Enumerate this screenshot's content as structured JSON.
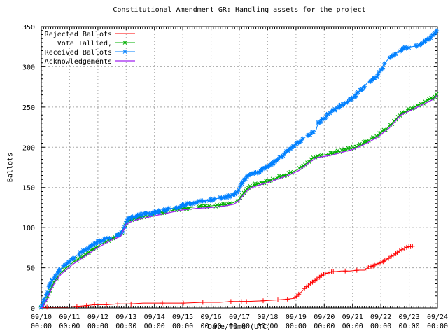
{
  "window": {
    "background": "#ffffff",
    "text_color": "#000000"
  },
  "chart_data": {
    "type": "line",
    "title": "Constitutional Amendment GR: Handling assets for the project",
    "xlabel": "Date/Time (UTC)",
    "ylabel": "Ballots",
    "grid": {
      "enabled": true,
      "color": "#a8a8a8"
    },
    "legend_position": "top-left",
    "x_axis": {
      "tick_dates": [
        "09/10",
        "09/11",
        "09/12",
        "09/13",
        "09/14",
        "09/15",
        "09/16",
        "09/17",
        "09/18",
        "09/19",
        "09/20",
        "09/21",
        "09/22",
        "09/23",
        "09/24"
      ],
      "tick_time": "00:00",
      "span_days": 14,
      "minor_ticks_per_day": 12
    },
    "y_axis": {
      "min": 0,
      "max": 350,
      "tick_step": 50,
      "minor_step": 5
    },
    "series": [
      {
        "name": "Rejected Ballots",
        "color": "#ff0000",
        "marker": "plus",
        "line_width": 1,
        "x_days": [
          0,
          0.2,
          0.9,
          1.26,
          1.6,
          1.88,
          2.3,
          2.7,
          3.17,
          3.6,
          4.28,
          5.02,
          5.71,
          6.3,
          6.7,
          7.07,
          7.25,
          7.84,
          8.36,
          8.7,
          8.95,
          9.1,
          9.25,
          9.4,
          9.55,
          9.7,
          9.85,
          10.0,
          10.15,
          10.35,
          10.6,
          10.9,
          11.2,
          11.45,
          11.55,
          11.75,
          11.95,
          12.15,
          12.35,
          12.55,
          12.7,
          12.85,
          13.0,
          13.15
        ],
        "y": [
          0,
          1,
          1,
          2,
          3,
          4,
          4,
          5,
          5,
          6,
          6,
          6,
          7,
          7,
          8,
          8,
          8,
          9,
          10,
          11,
          12,
          17,
          22,
          27,
          31,
          35,
          39,
          42,
          44,
          45,
          46,
          46,
          47,
          47,
          51,
          53,
          56,
          59,
          64,
          68,
          72,
          75,
          76,
          77
        ],
        "marker_xs": [
          0.2,
          1.26,
          1.6,
          1.88,
          2.3,
          2.7,
          3.17,
          4.28,
          5.02,
          5.71,
          6.7,
          7.07,
          7.25,
          7.84,
          8.36,
          8.7,
          10.74,
          11.15
        ],
        "dense_marker_ranges": [
          [
            8.95,
            10.4
          ],
          [
            11.5,
            13.15
          ]
        ],
        "marker_step": 0.07,
        "jitter": 0.6,
        "seed": 7
      },
      {
        "name": "Vote Tallied,",
        "color": "#00b000",
        "marker": "cross",
        "line_width": 1,
        "x_days": [
          0,
          0.05,
          0.2,
          0.35,
          0.5,
          0.7,
          0.9,
          1.1,
          1.4,
          1.7,
          1.95,
          2.2,
          2.5,
          2.8,
          3.0,
          3.2,
          3.5,
          3.9,
          4.3,
          4.7,
          5.0,
          5.5,
          6.0,
          6.5,
          6.8,
          7.0,
          7.15,
          7.3,
          7.45,
          7.7,
          8.0,
          8.4,
          8.8,
          9.1,
          9.47,
          9.72,
          10.24,
          10.65,
          11.08,
          11.5,
          11.9,
          12.3,
          12.71,
          13.0,
          13.3,
          13.6,
          13.88,
          14.0
        ],
        "y": [
          0,
          2,
          12,
          25,
          35,
          44,
          50,
          56,
          63,
          70,
          76,
          81,
          87,
          91,
          106,
          110,
          113,
          116,
          119,
          122,
          124,
          126,
          127,
          129,
          131,
          136,
          143,
          149,
          152,
          155,
          158,
          163,
          168,
          173,
          183,
          189,
          192,
          196,
          200,
          207,
          215,
          226,
          242,
          247,
          252,
          257,
          262,
          268
        ],
        "dense_marker_ranges": [
          [
            0,
            14
          ]
        ],
        "marker_step": 0.06,
        "jitter": 1.6,
        "seed": 13
      },
      {
        "name": "Received Ballots",
        "color": "#0080ff",
        "marker": "star",
        "line_width": 1,
        "x_days": [
          0,
          0.05,
          0.15,
          0.25,
          0.35,
          0.5,
          0.7,
          0.9,
          1.0,
          1.2,
          1.5,
          1.8,
          2.0,
          2.3,
          2.6,
          2.87,
          3.0,
          3.15,
          3.5,
          3.9,
          4.05,
          4.4,
          4.85,
          5.1,
          5.5,
          6.0,
          6.5,
          6.8,
          6.95,
          7.1,
          7.25,
          7.4,
          7.6,
          8.05,
          8.4,
          8.8,
          9.3,
          9.7,
          9.78,
          9.9,
          10.25,
          10.65,
          11.1,
          11.5,
          11.9,
          12.15,
          12.3,
          12.6,
          12.8,
          12.9,
          13.3,
          13.55,
          13.75,
          13.9,
          14.0
        ],
        "y": [
          0,
          4,
          14,
          24,
          32,
          40,
          49,
          55,
          58,
          64,
          71,
          78,
          82,
          86,
          89,
          95,
          108,
          113,
          116,
          118,
          119,
          122,
          126,
          129,
          131,
          135,
          138,
          141,
          146,
          155,
          162,
          166,
          168,
          177,
          186,
          198,
          212,
          220,
          230,
          233,
          244,
          253,
          264,
          279,
          290,
          305,
          311,
          319,
          322,
          324,
          326,
          331,
          336,
          341,
          346
        ],
        "dense_marker_ranges": [
          [
            0,
            14
          ]
        ],
        "marker_step": 0.05,
        "jitter": 1.6,
        "seed": 29
      },
      {
        "name": "Acknowledgements",
        "color": "#a020f0",
        "marker": "none",
        "line_width": 1.3,
        "x_days": [
          0,
          0.05,
          0.2,
          0.35,
          0.5,
          0.7,
          0.9,
          1.1,
          1.4,
          1.7,
          1.95,
          2.2,
          2.5,
          2.8,
          3.0,
          3.2,
          3.5,
          3.9,
          4.3,
          4.7,
          5.0,
          5.5,
          6.0,
          6.5,
          6.8,
          7.0,
          7.15,
          7.3,
          7.45,
          7.7,
          8.0,
          8.4,
          8.8,
          9.1,
          9.47,
          9.72,
          10.24,
          10.65,
          11.08,
          11.5,
          11.9,
          12.3,
          12.71,
          13.0,
          13.3,
          13.6,
          13.88,
          14.0
        ],
        "y": [
          0,
          1,
          10,
          23,
          33,
          42,
          48,
          54,
          61,
          68,
          74,
          79,
          85,
          89,
          104,
          108,
          111,
          114,
          117,
          120,
          122,
          124,
          125,
          127,
          129,
          134,
          141,
          147,
          150,
          153,
          156,
          161,
          166,
          171,
          181,
          187,
          190,
          194,
          198,
          205,
          213,
          224,
          240,
          245,
          250,
          255,
          260,
          265
        ],
        "dense_marker_ranges": [],
        "marker_step": 0.1,
        "jitter": 0,
        "seed": 1
      }
    ]
  }
}
